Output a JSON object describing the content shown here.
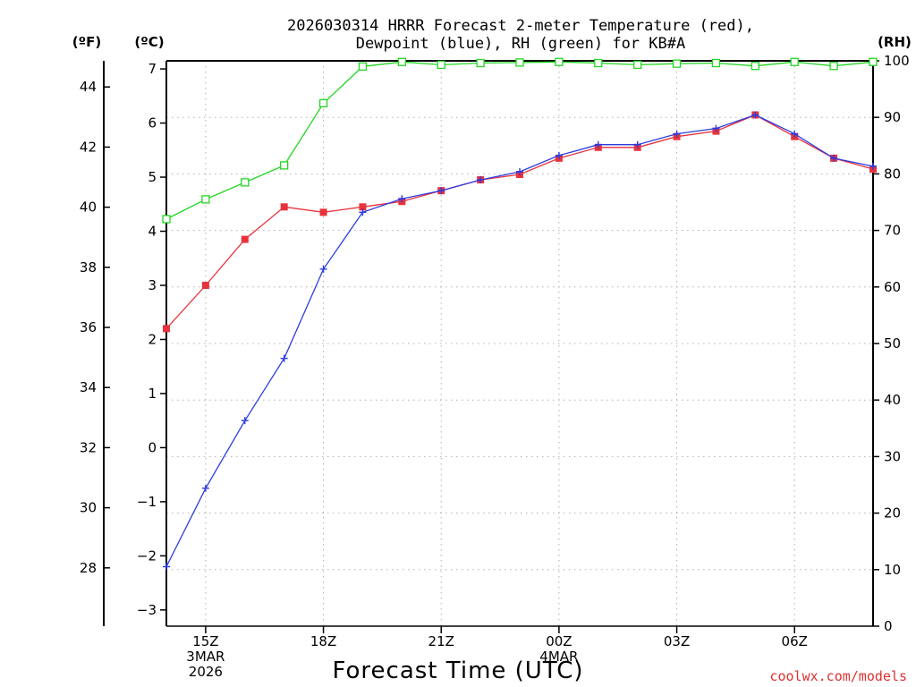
{
  "chart_data": {
    "type": "line",
    "title": [
      "2026030314 HRRR Forecast 2-meter Temperature (red),",
      "Dewpoint (blue), RH (green) for KB#A"
    ],
    "xlabel": "Forecast Time (UTC)",
    "credit": "coolwx.com/models",
    "units": {
      "fahrenheit": "(ºF)",
      "celsius": "(ºC)",
      "rh": "(RH)"
    },
    "x_hours": [
      14,
      15,
      16,
      17,
      18,
      19,
      20,
      21,
      22,
      23,
      24,
      25,
      26,
      27,
      28,
      29,
      30,
      31,
      32
    ],
    "xlim": [
      14,
      32
    ],
    "x_ticks": [
      {
        "x": 15,
        "lines": [
          "15Z",
          "3MAR",
          "2026"
        ]
      },
      {
        "x": 18,
        "lines": [
          "18Z"
        ]
      },
      {
        "x": 21,
        "lines": [
          "21Z"
        ]
      },
      {
        "x": 24,
        "lines": [
          "00Z",
          "4MAR"
        ]
      },
      {
        "x": 27,
        "lines": [
          "03Z"
        ]
      },
      {
        "x": 30,
        "lines": [
          "06Z"
        ]
      }
    ],
    "y_left_celsius": {
      "lim": [
        -3.3,
        7.15
      ],
      "ticks": [
        -3,
        -2,
        -1,
        0,
        1,
        2,
        3,
        4,
        5,
        6,
        7
      ]
    },
    "y_left_fahrenheit": {
      "ticks": [
        28,
        30,
        32,
        34,
        36,
        38,
        40,
        42,
        44
      ]
    },
    "y_right_rh": {
      "lim": [
        0,
        100
      ],
      "ticks": [
        0,
        10,
        20,
        30,
        40,
        50,
        60,
        70,
        80,
        90,
        100
      ]
    },
    "series": [
      {
        "name": "Temperature",
        "axis": "celsius",
        "color": "#e8323c",
        "marker": "filled-square",
        "values": [
          2.2,
          3.0,
          3.85,
          4.45,
          4.35,
          4.45,
          4.55,
          4.75,
          4.95,
          5.05,
          5.35,
          5.55,
          5.55,
          5.75,
          5.85,
          6.15,
          5.75,
          5.35,
          5.15
        ]
      },
      {
        "name": "Dewpoint",
        "axis": "celsius",
        "color": "#2b3ce0",
        "marker": "plus",
        "values": [
          -2.2,
          -0.75,
          0.5,
          1.65,
          3.3,
          4.35,
          4.6,
          4.75,
          4.95,
          5.1,
          5.4,
          5.6,
          5.6,
          5.8,
          5.9,
          6.15,
          5.8,
          5.35,
          5.2
        ]
      },
      {
        "name": "Relative Humidity",
        "axis": "rh",
        "color": "#22d622",
        "marker": "open-square",
        "values": [
          72,
          75.5,
          78.5,
          81.5,
          92.5,
          99,
          99.8,
          99.3,
          99.6,
          99.7,
          99.8,
          99.6,
          99.3,
          99.5,
          99.6,
          99.1,
          99.8,
          99.1,
          99.8
        ]
      }
    ]
  }
}
